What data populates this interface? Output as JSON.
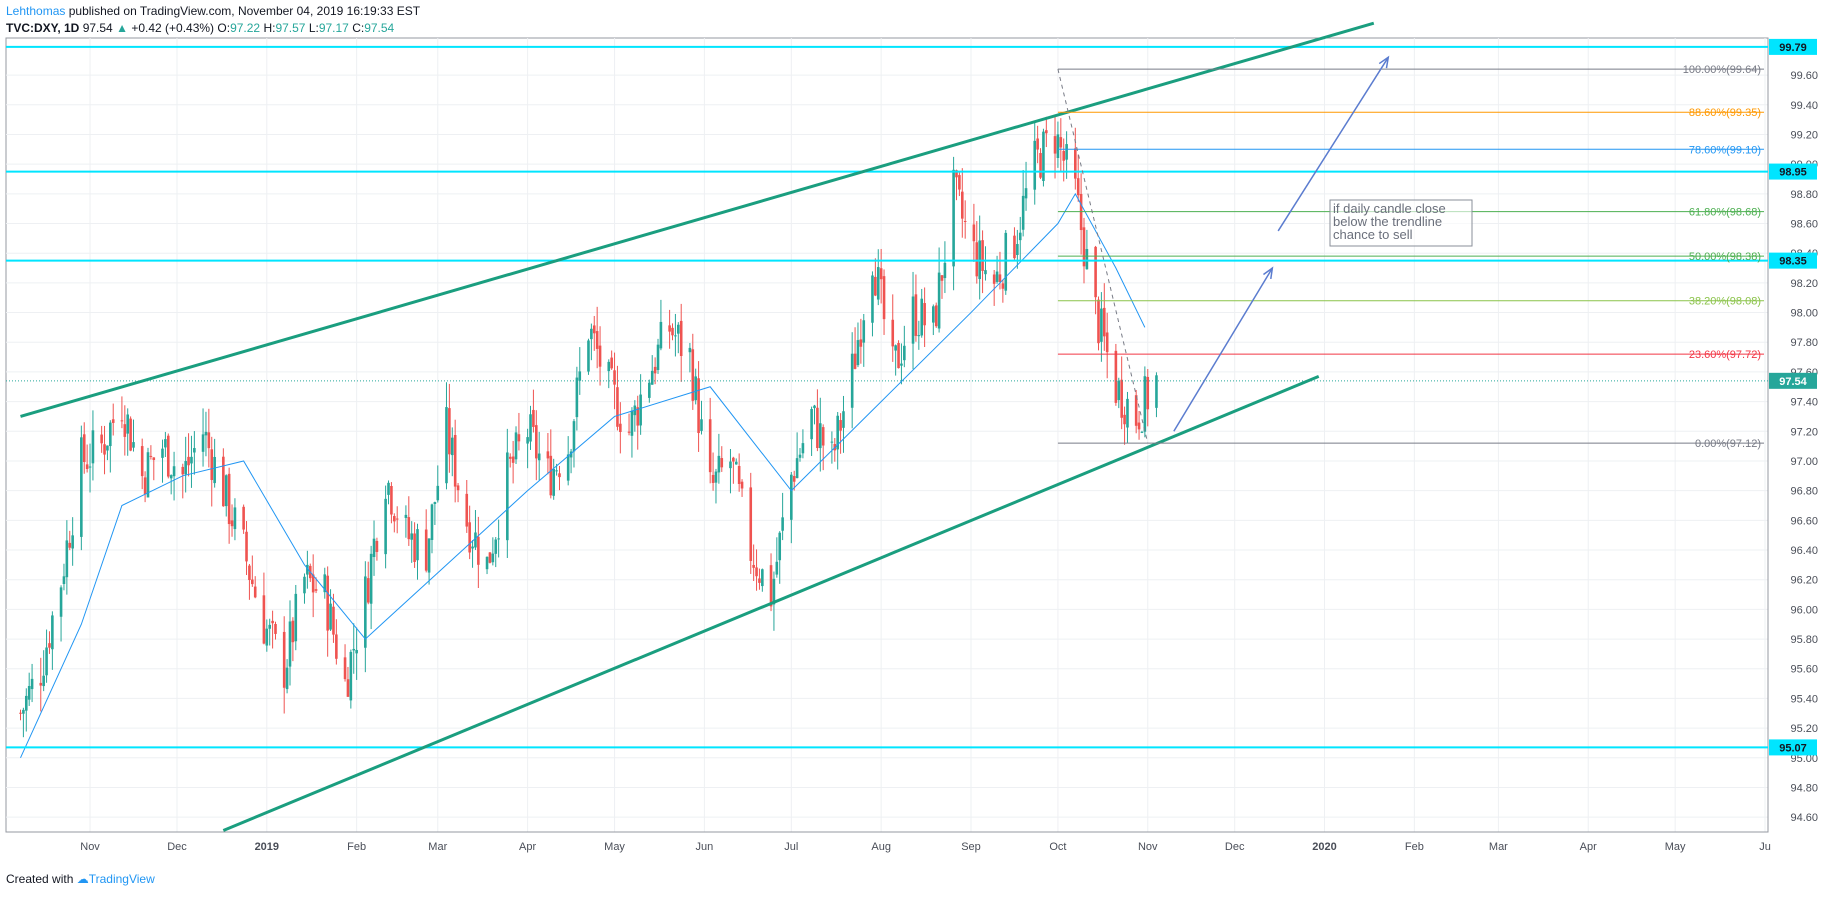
{
  "header": {
    "author": "Lehthomas",
    "published": "published on TradingView.com, November 04, 2019 16:19:33 EST",
    "symbol": "TVC:DXY, 1D",
    "last": "97.54",
    "change_arrow": "▲",
    "change": "+0.42 (+0.43%)",
    "o_label": "O:",
    "o_value": "97.22",
    "h_label": "H:",
    "h_value": "97.57",
    "l_label": "L:",
    "l_value": "97.17",
    "c_label": "C:",
    "c_value": "97.54"
  },
  "footer": {
    "created_with": "Created with",
    "brand": "TradingView"
  },
  "chart_data": {
    "type": "candlestick",
    "symbol": "TVC:DXY",
    "interval": "1D",
    "y_range": [
      94.5,
      99.85
    ],
    "y_ticks": [
      "94.60",
      "94.80",
      "95.00",
      "95.20",
      "95.40",
      "95.60",
      "95.80",
      "96.00",
      "96.20",
      "96.40",
      "96.60",
      "96.80",
      "97.00",
      "97.20",
      "97.40",
      "97.60",
      "97.80",
      "98.00",
      "98.20",
      "98.40",
      "98.60",
      "98.80",
      "99.00",
      "99.20",
      "99.40",
      "99.60"
    ],
    "x_ticks": [
      {
        "label": "Nov",
        "date": "2018-11-01"
      },
      {
        "label": "Dec",
        "date": "2018-12-01"
      },
      {
        "label": "2019",
        "date": "2019-01-01"
      },
      {
        "label": "Feb",
        "date": "2019-02-01"
      },
      {
        "label": "Mar",
        "date": "2019-03-01"
      },
      {
        "label": "Apr",
        "date": "2019-04-01"
      },
      {
        "label": "May",
        "date": "2019-05-01"
      },
      {
        "label": "Jun",
        "date": "2019-06-01"
      },
      {
        "label": "Jul",
        "date": "2019-07-01"
      },
      {
        "label": "Aug",
        "date": "2019-08-01"
      },
      {
        "label": "Sep",
        "date": "2019-09-01"
      },
      {
        "label": "Oct",
        "date": "2019-10-01"
      },
      {
        "label": "Nov",
        "date": "2019-11-01"
      },
      {
        "label": "Dec",
        "date": "2019-12-01"
      },
      {
        "label": "2020",
        "date": "2020-01-01"
      },
      {
        "label": "Feb",
        "date": "2020-02-01"
      },
      {
        "label": "Mar",
        "date": "2020-03-01"
      },
      {
        "label": "Apr",
        "date": "2020-04-01"
      },
      {
        "label": "May",
        "date": "2020-05-01"
      },
      {
        "label": "Ju",
        "date": "2020-06-01"
      }
    ],
    "grid": true,
    "price_series": [
      {
        "date": "2018-10-08",
        "close": 95.3
      },
      {
        "date": "2018-10-15",
        "close": 95.6
      },
      {
        "date": "2018-10-22",
        "close": 96.2
      },
      {
        "date": "2018-10-29",
        "close": 97.0
      },
      {
        "date": "2018-11-05",
        "close": 97.1
      },
      {
        "date": "2018-11-12",
        "close": 97.4
      },
      {
        "date": "2018-11-19",
        "close": 96.9
      },
      {
        "date": "2018-11-26",
        "close": 97.1
      },
      {
        "date": "2018-12-03",
        "close": 96.9
      },
      {
        "date": "2018-12-10",
        "close": 97.2
      },
      {
        "date": "2018-12-17",
        "close": 96.8
      },
      {
        "date": "2018-12-24",
        "close": 96.4
      },
      {
        "date": "2018-12-31",
        "close": 95.9
      },
      {
        "date": "2019-01-07",
        "close": 95.6
      },
      {
        "date": "2019-01-14",
        "close": 96.2
      },
      {
        "date": "2019-01-21",
        "close": 96.1
      },
      {
        "date": "2019-01-28",
        "close": 95.5
      },
      {
        "date": "2019-02-04",
        "close": 96.1
      },
      {
        "date": "2019-02-11",
        "close": 96.9
      },
      {
        "date": "2019-02-18",
        "close": 96.5
      },
      {
        "date": "2019-02-25",
        "close": 96.4
      },
      {
        "date": "2019-03-04",
        "close": 97.2
      },
      {
        "date": "2019-03-11",
        "close": 96.6
      },
      {
        "date": "2019-03-18",
        "close": 96.3
      },
      {
        "date": "2019-03-25",
        "close": 96.9
      },
      {
        "date": "2019-04-01",
        "close": 97.2
      },
      {
        "date": "2019-04-08",
        "close": 96.9
      },
      {
        "date": "2019-04-15",
        "close": 97.1
      },
      {
        "date": "2019-04-22",
        "close": 97.9
      },
      {
        "date": "2019-04-29",
        "close": 97.5
      },
      {
        "date": "2019-05-06",
        "close": 97.2
      },
      {
        "date": "2019-05-13",
        "close": 97.6
      },
      {
        "date": "2019-05-20",
        "close": 97.9
      },
      {
        "date": "2019-05-27",
        "close": 97.7
      },
      {
        "date": "2019-06-03",
        "close": 96.8
      },
      {
        "date": "2019-06-10",
        "close": 97.0
      },
      {
        "date": "2019-06-17",
        "close": 96.4
      },
      {
        "date": "2019-06-24",
        "close": 96.1
      },
      {
        "date": "2019-07-01",
        "close": 96.9
      },
      {
        "date": "2019-07-08",
        "close": 97.3
      },
      {
        "date": "2019-07-15",
        "close": 97.0
      },
      {
        "date": "2019-07-22",
        "close": 97.6
      },
      {
        "date": "2019-07-29",
        "close": 98.4
      },
      {
        "date": "2019-08-05",
        "close": 97.6
      },
      {
        "date": "2019-08-12",
        "close": 98.0
      },
      {
        "date": "2019-08-19",
        "close": 97.9
      },
      {
        "date": "2019-08-26",
        "close": 98.8
      },
      {
        "date": "2019-09-02",
        "close": 98.4
      },
      {
        "date": "2019-09-09",
        "close": 98.2
      },
      {
        "date": "2019-09-16",
        "close": 98.5
      },
      {
        "date": "2019-09-23",
        "close": 99.0
      },
      {
        "date": "2019-09-30",
        "close": 99.2
      },
      {
        "date": "2019-10-07",
        "close": 98.8
      },
      {
        "date": "2019-10-14",
        "close": 98.0
      },
      {
        "date": "2019-10-21",
        "close": 97.5
      },
      {
        "date": "2019-10-28",
        "close": 97.3
      },
      {
        "date": "2019-11-04",
        "close": 97.54
      }
    ],
    "moving_average": [
      {
        "date": "2018-10-08",
        "value": 95.0
      },
      {
        "date": "2018-10-29",
        "value": 95.9
      },
      {
        "date": "2018-11-12",
        "value": 96.7
      },
      {
        "date": "2018-12-03",
        "value": 96.9
      },
      {
        "date": "2018-12-24",
        "value": 97.0
      },
      {
        "date": "2019-01-14",
        "value": 96.3
      },
      {
        "date": "2019-02-04",
        "value": 95.8
      },
      {
        "date": "2019-03-04",
        "value": 96.3
      },
      {
        "date": "2019-04-01",
        "value": 96.8
      },
      {
        "date": "2019-05-01",
        "value": 97.3
      },
      {
        "date": "2019-06-03",
        "value": 97.5
      },
      {
        "date": "2019-07-01",
        "value": 96.8
      },
      {
        "date": "2019-08-01",
        "value": 97.4
      },
      {
        "date": "2019-09-01",
        "value": 98.0
      },
      {
        "date": "2019-10-01",
        "value": 98.6
      },
      {
        "date": "2019-10-07",
        "value": 98.8
      },
      {
        "date": "2019-10-21",
        "value": 98.3
      },
      {
        "date": "2019-10-31",
        "value": 97.9
      }
    ],
    "horizontal_levels": [
      {
        "value": 99.79,
        "label": "99.79"
      },
      {
        "value": 98.95,
        "label": "98.95"
      },
      {
        "value": 98.35,
        "label": "98.35"
      },
      {
        "value": 95.07,
        "label": "95.07"
      }
    ],
    "last_price": {
      "value": 97.54,
      "label": "97.54"
    },
    "channel": {
      "upper": [
        {
          "date": "2018-10-08",
          "value": 97.3
        },
        {
          "date": "2020-01-18",
          "value": 99.95
        }
      ],
      "lower": [
        {
          "date": "2018-12-17",
          "value": 94.51
        },
        {
          "date": "2019-12-30",
          "value": 97.57
        }
      ]
    },
    "fibonacci": [
      {
        "label": "100.00%(99.64)",
        "value": 99.64,
        "color": "#787b86"
      },
      {
        "label": "88.60%(99.35)",
        "value": 99.35,
        "color": "#ff9800"
      },
      {
        "label": "78.60%(99.10)",
        "value": 99.1,
        "color": "#2196f3"
      },
      {
        "label": "61.80%(98.68)",
        "value": 98.68,
        "color": "#4caf50"
      },
      {
        "label": "50.00%(98.38)",
        "value": 98.38,
        "color": "#4caf50"
      },
      {
        "label": "38.20%(98.08)",
        "value": 98.08,
        "color": "#8bc34a"
      },
      {
        "label": "23.60%(97.72)",
        "value": 97.72,
        "color": "#f23645"
      },
      {
        "label": "0.00%(97.12)",
        "value": 97.12,
        "color": "#787b86"
      }
    ],
    "annotation": {
      "lines": [
        "if daily candle close",
        "below the trendline",
        "chance to sell"
      ]
    },
    "colors": {
      "up": "#26a69a",
      "down": "#ef5350",
      "channel": "#1a9e7f",
      "level": "#00e5ff",
      "ma": "#2196f3",
      "arrow": "#5b7ccf",
      "tag": "#00e5ff",
      "last_tag": "#26a69a"
    }
  }
}
